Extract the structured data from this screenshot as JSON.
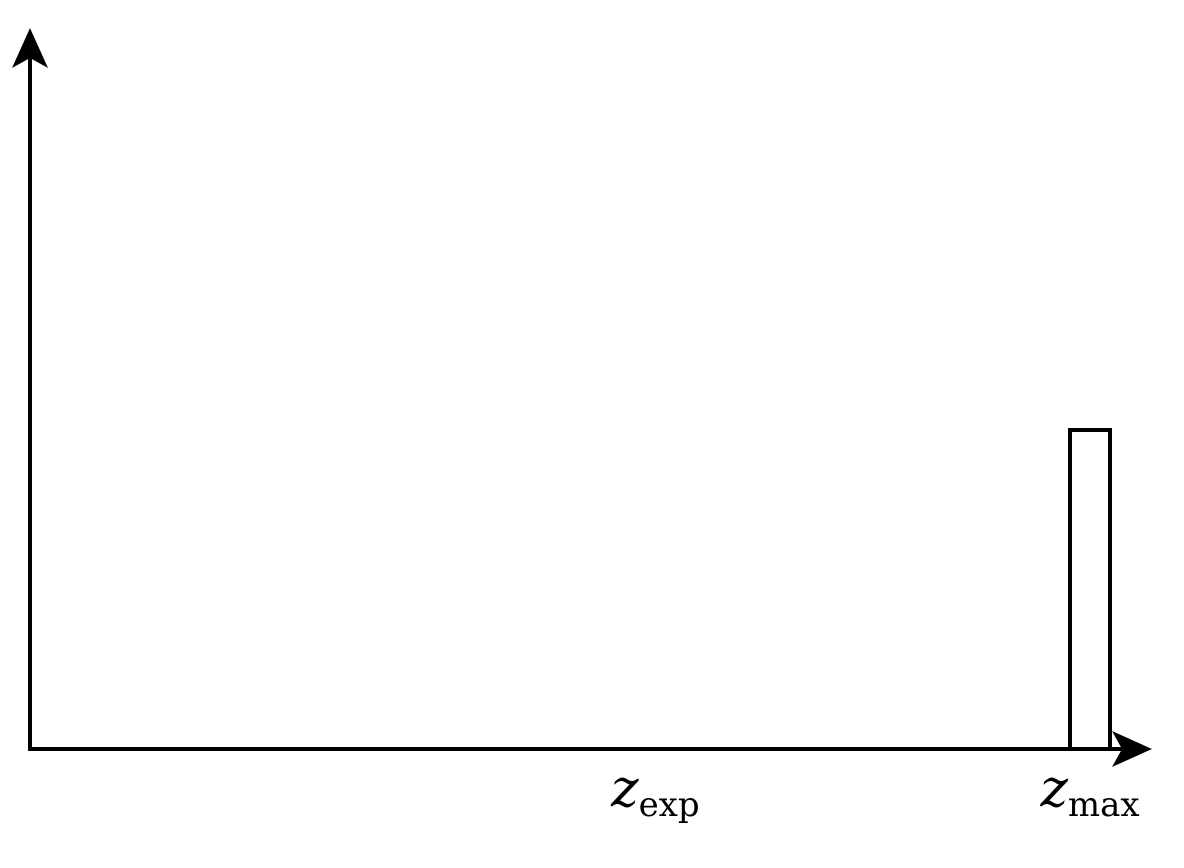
{
  "chart_data": {
    "type": "bar",
    "title": "",
    "xlabel": "",
    "ylabel": "",
    "x_ticks": [
      {
        "name": "z_exp",
        "base": "z",
        "subscript": "exp",
        "value": 0.59
      },
      {
        "name": "z_max",
        "base": "z",
        "subscript": "max",
        "value": 1.0
      }
    ],
    "xlim": [
      0,
      1.0
    ],
    "ylim": [
      0,
      1.0
    ],
    "bars": [
      {
        "x": 1.0,
        "value": 0.5
      }
    ],
    "grid": false,
    "legend": "none"
  },
  "colors": {
    "stroke": "#000000",
    "background": "#ffffff",
    "bar_fill": "#ffffff"
  }
}
